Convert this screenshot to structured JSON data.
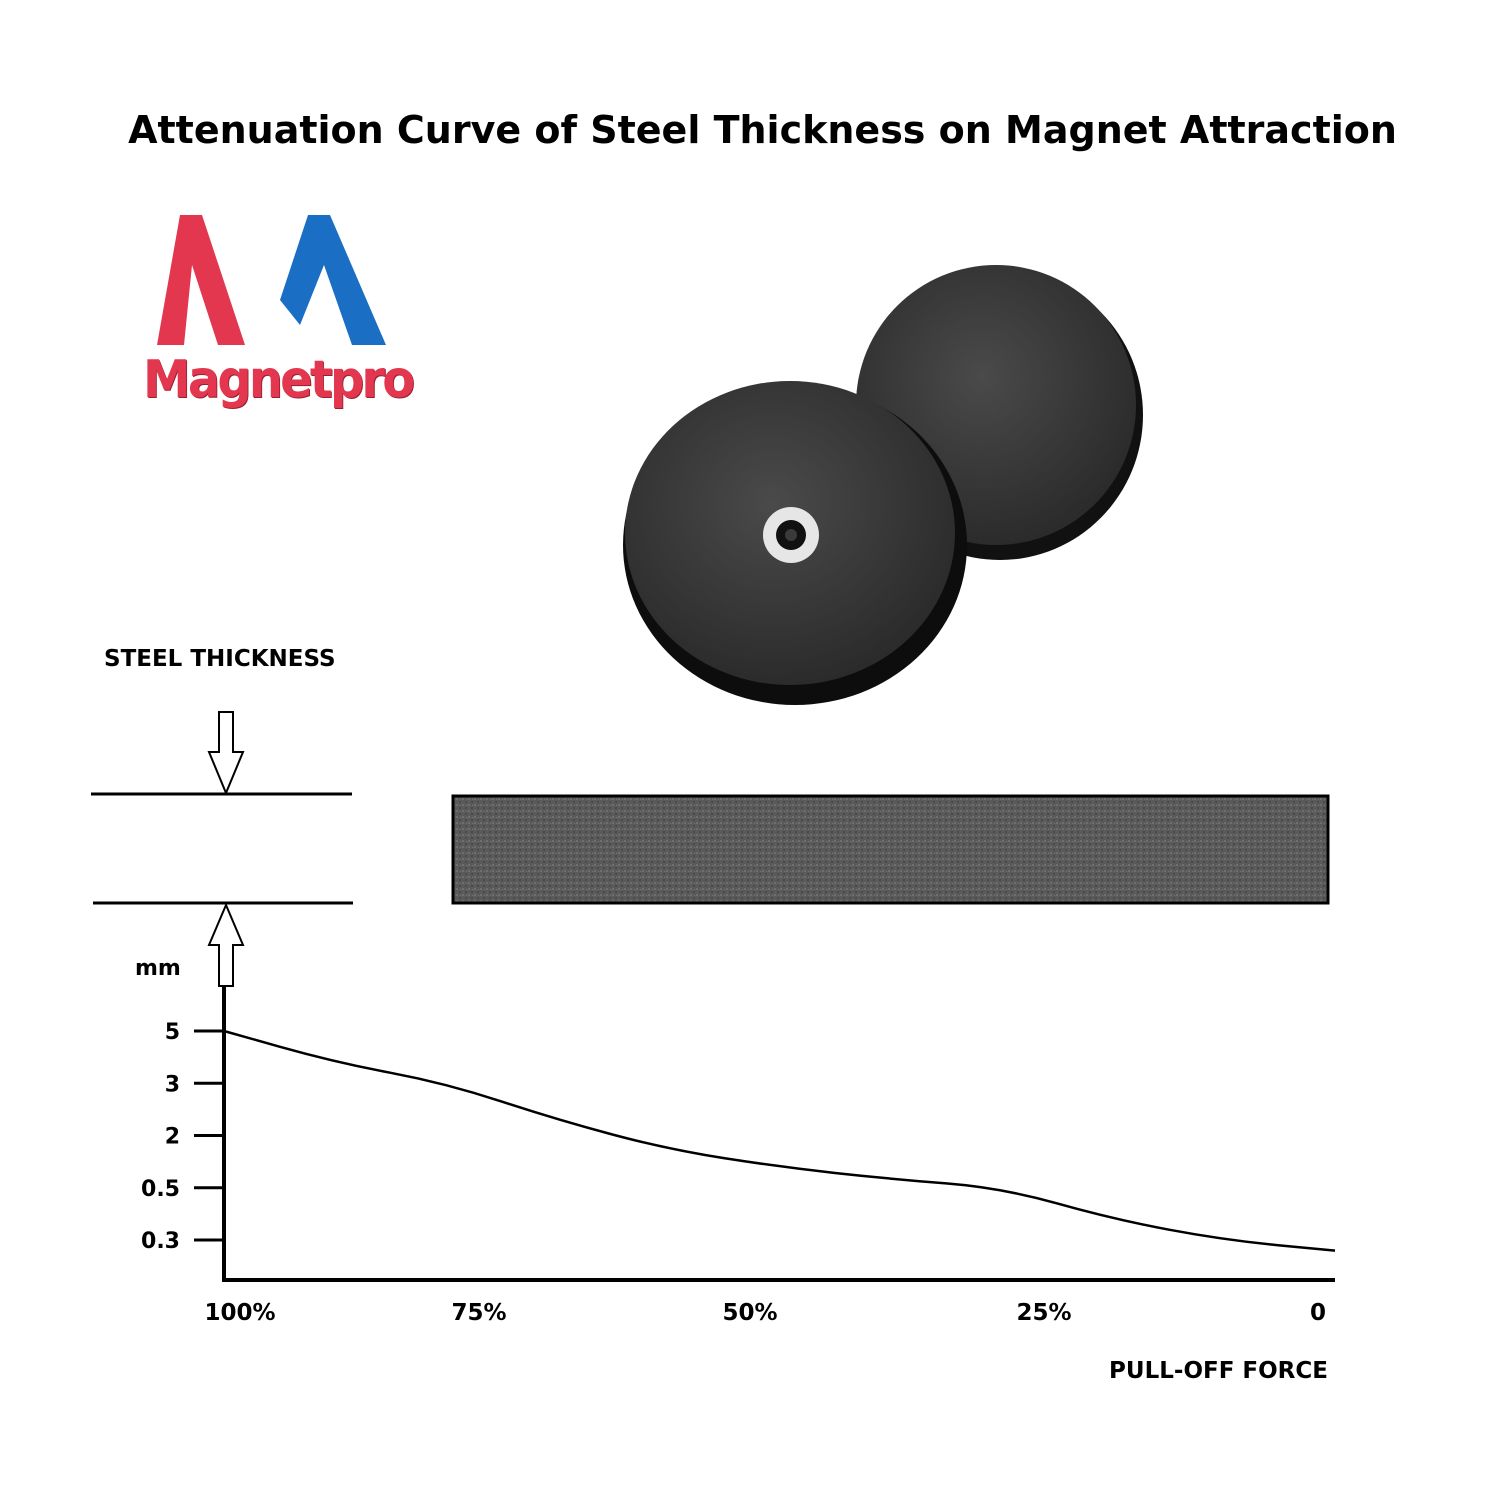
{
  "title": "Attenuation Curve of Steel Thickness on Magnet Attraction",
  "logo": {
    "text": "Magnetpro",
    "colors": {
      "red": "#e2374f",
      "blue": "#1a6fc4"
    }
  },
  "diagram": {
    "label": "STEEL THICKNESS",
    "plate_color": "#595959"
  },
  "chart_data": {
    "type": "line",
    "ylabel": "mm",
    "xlabel": "PULL-OFF FORCE",
    "y_ticks": [
      "5",
      "3",
      "2",
      "0.5",
      "0.3"
    ],
    "x_ticks": [
      "100%",
      "75%",
      "50%",
      "25%",
      "0"
    ],
    "x_tick_values": [
      100,
      75,
      50,
      25,
      0
    ],
    "y_positions_by_label": {
      "5": 5,
      "3": 3,
      "2": 2,
      "0.5": 0.5,
      "0.3": 0.3
    },
    "series": [
      {
        "x": [
          100,
          90,
          80,
          70,
          60,
          50,
          40,
          30,
          20,
          10,
          0
        ],
        "y": [
          5,
          3.8,
          3.0,
          2.3,
          1.6,
          1.1,
          0.75,
          0.5,
          0.38,
          0.3,
          0.22
        ]
      }
    ],
    "grid": false,
    "legend": "none"
  }
}
